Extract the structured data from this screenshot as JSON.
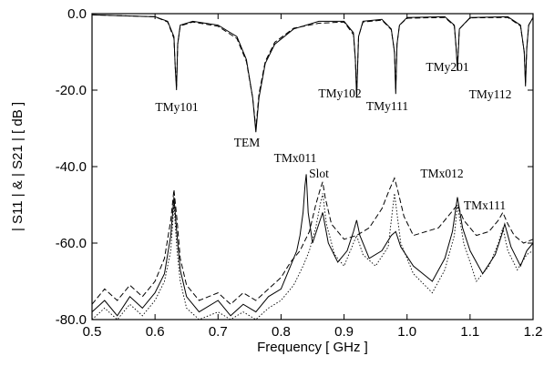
{
  "chart_data": {
    "type": "line",
    "title": "",
    "xlabel": "Frequency  [ GHz ]",
    "ylabel": "| S11 |  &  | S21 |  [ dB ]",
    "xlim": [
      0.5,
      1.2
    ],
    "ylim": [
      -80,
      0
    ],
    "xticks": [
      0.5,
      0.6,
      0.7,
      0.8,
      0.9,
      1.0,
      1.1,
      1.2
    ],
    "xtick_labels": [
      "0.5",
      "0.6",
      "0.7",
      "0.8",
      "0.9",
      "1.0",
      "1.1",
      "1.2"
    ],
    "yticks": [
      0,
      -20,
      -40,
      -60,
      -80
    ],
    "ytick_labels": [
      "0.0",
      "-20.0",
      "-40.0",
      "-60.0",
      "-80.0"
    ],
    "grid": false,
    "legend": "none",
    "series": [
      {
        "style": "solid",
        "x": [
          0.5,
          0.6,
          0.62,
          0.63,
          0.632,
          0.634,
          0.636,
          0.64,
          0.66,
          0.7,
          0.73,
          0.745,
          0.755,
          0.76,
          0.765,
          0.775,
          0.79,
          0.82,
          0.86,
          0.9,
          0.915,
          0.918,
          0.92,
          0.923,
          0.93,
          0.96,
          0.975,
          0.98,
          0.982,
          0.984,
          0.988,
          1.0,
          1.06,
          1.075,
          1.078,
          1.08,
          1.083,
          1.1,
          1.16,
          1.18,
          1.186,
          1.188,
          1.19,
          1.193,
          1.2
        ],
        "y": [
          -0.3,
          -0.8,
          -2,
          -6,
          -14,
          -20,
          -8,
          -3,
          -2,
          -3,
          -6,
          -12,
          -22,
          -31,
          -22,
          -13,
          -8,
          -4,
          -2,
          -2,
          -5,
          -12,
          -22,
          -6,
          -2,
          -1.5,
          -4,
          -10,
          -21,
          -8,
          -3,
          -1,
          -0.8,
          -3,
          -9,
          -15,
          -4,
          -1,
          -0.8,
          -3,
          -10,
          -19,
          -9,
          -3,
          -1
        ]
      },
      {
        "style": "dashed",
        "x": [
          0.5,
          0.6,
          0.62,
          0.63,
          0.632,
          0.634,
          0.636,
          0.64,
          0.66,
          0.7,
          0.73,
          0.745,
          0.755,
          0.76,
          0.765,
          0.775,
          0.79,
          0.82,
          0.86,
          0.9,
          0.915,
          0.918,
          0.92,
          0.923,
          0.93,
          0.96,
          0.975,
          0.98,
          0.982,
          0.984,
          0.988,
          1.0,
          1.06,
          1.075,
          1.078,
          1.08,
          1.083,
          1.1,
          1.16,
          1.18,
          1.186,
          1.188,
          1.19,
          1.193,
          1.2
        ],
        "y": [
          -0.3,
          -0.8,
          -2.2,
          -6.5,
          -14,
          -19,
          -8,
          -3.2,
          -2.2,
          -3.3,
          -6.5,
          -12.5,
          -22,
          -30,
          -21,
          -12.5,
          -7.5,
          -3.8,
          -2.5,
          -2.2,
          -5.5,
          -12,
          -21,
          -6,
          -2.2,
          -1.7,
          -4.2,
          -10,
          -20,
          -8,
          -3,
          -1.2,
          -1,
          -3.2,
          -9,
          -14,
          -4,
          -1.1,
          -1,
          -3.2,
          -10,
          -18,
          -9,
          -3,
          -1
        ]
      },
      {
        "style": "solid",
        "x": [
          0.5,
          0.52,
          0.54,
          0.56,
          0.58,
          0.6,
          0.615,
          0.625,
          0.63,
          0.635,
          0.64,
          0.65,
          0.67,
          0.7,
          0.72,
          0.74,
          0.76,
          0.78,
          0.8,
          0.815,
          0.825,
          0.83,
          0.835,
          0.838,
          0.84,
          0.843,
          0.85,
          0.86,
          0.866,
          0.875,
          0.89,
          0.905,
          0.915,
          0.92,
          0.925,
          0.94,
          0.96,
          0.975,
          0.982,
          0.99,
          1.01,
          1.04,
          1.06,
          1.072,
          1.08,
          1.088,
          1.1,
          1.12,
          1.14,
          1.15,
          1.155,
          1.165,
          1.18,
          1.19,
          1.2
        ],
        "y": [
          -78,
          -75,
          -79,
          -74,
          -77,
          -73,
          -68,
          -58,
          -48,
          -58,
          -67,
          -74,
          -78,
          -75,
          -79,
          -76,
          -78,
          -74,
          -72,
          -66,
          -62,
          -58,
          -52,
          -45,
          -42,
          -52,
          -60,
          -55,
          -52,
          -60,
          -65,
          -62,
          -57,
          -54,
          -58,
          -64,
          -62,
          -58,
          -57,
          -61,
          -66,
          -70,
          -64,
          -57,
          -48,
          -56,
          -62,
          -68,
          -63,
          -58,
          -55,
          -61,
          -66,
          -62,
          -60
        ]
      },
      {
        "style": "dashed",
        "x": [
          0.5,
          0.52,
          0.54,
          0.56,
          0.58,
          0.6,
          0.615,
          0.625,
          0.63,
          0.635,
          0.64,
          0.65,
          0.67,
          0.7,
          0.72,
          0.74,
          0.76,
          0.78,
          0.8,
          0.815,
          0.83,
          0.845,
          0.855,
          0.862,
          0.866,
          0.87,
          0.88,
          0.9,
          0.92,
          0.94,
          0.96,
          0.972,
          0.98,
          0.985,
          0.995,
          1.01,
          1.03,
          1.05,
          1.07,
          1.08,
          1.09,
          1.11,
          1.13,
          1.145,
          1.152,
          1.16,
          1.17,
          1.185,
          1.2
        ],
        "y": [
          -76,
          -72,
          -75,
          -71,
          -74,
          -70,
          -64,
          -54,
          -46,
          -54,
          -64,
          -71,
          -75,
          -73,
          -76,
          -73,
          -75,
          -72,
          -69,
          -65,
          -62,
          -57,
          -50,
          -46,
          -44,
          -48,
          -55,
          -59,
          -58,
          -56,
          -51,
          -46,
          -43,
          -46,
          -53,
          -58,
          -57,
          -56,
          -52,
          -50,
          -54,
          -58,
          -57,
          -54,
          -52,
          -55,
          -58,
          -60,
          -59
        ]
      },
      {
        "style": "dotted",
        "x": [
          0.5,
          0.52,
          0.54,
          0.56,
          0.58,
          0.6,
          0.615,
          0.625,
          0.63,
          0.635,
          0.64,
          0.65,
          0.67,
          0.7,
          0.72,
          0.74,
          0.76,
          0.78,
          0.8,
          0.82,
          0.835,
          0.845,
          0.855,
          0.862,
          0.866,
          0.872,
          0.885,
          0.9,
          0.915,
          0.92,
          0.93,
          0.95,
          0.97,
          0.98,
          0.99,
          1.01,
          1.04,
          1.06,
          1.075,
          1.08,
          1.09,
          1.11,
          1.13,
          1.145,
          1.152,
          1.16,
          1.175,
          1.19,
          1.2
        ],
        "y": [
          -80,
          -77,
          -80,
          -76,
          -79,
          -75,
          -70,
          -62,
          -50,
          -62,
          -70,
          -77,
          -80,
          -78,
          -80,
          -78,
          -80,
          -77,
          -75,
          -71,
          -66,
          -62,
          -56,
          -50,
          -47,
          -55,
          -63,
          -66,
          -60,
          -58,
          -63,
          -66,
          -61,
          -47,
          -60,
          -68,
          -73,
          -67,
          -58,
          -50,
          -60,
          -70,
          -66,
          -60,
          -56,
          -62,
          -67,
          -63,
          -62
        ]
      }
    ],
    "annotations": [
      "TMy101",
      "TEM",
      "TMy102",
      "TMy111",
      "TMy201",
      "TMy112",
      "TMx011",
      "Slot",
      "TMx012",
      "TMx111"
    ]
  }
}
